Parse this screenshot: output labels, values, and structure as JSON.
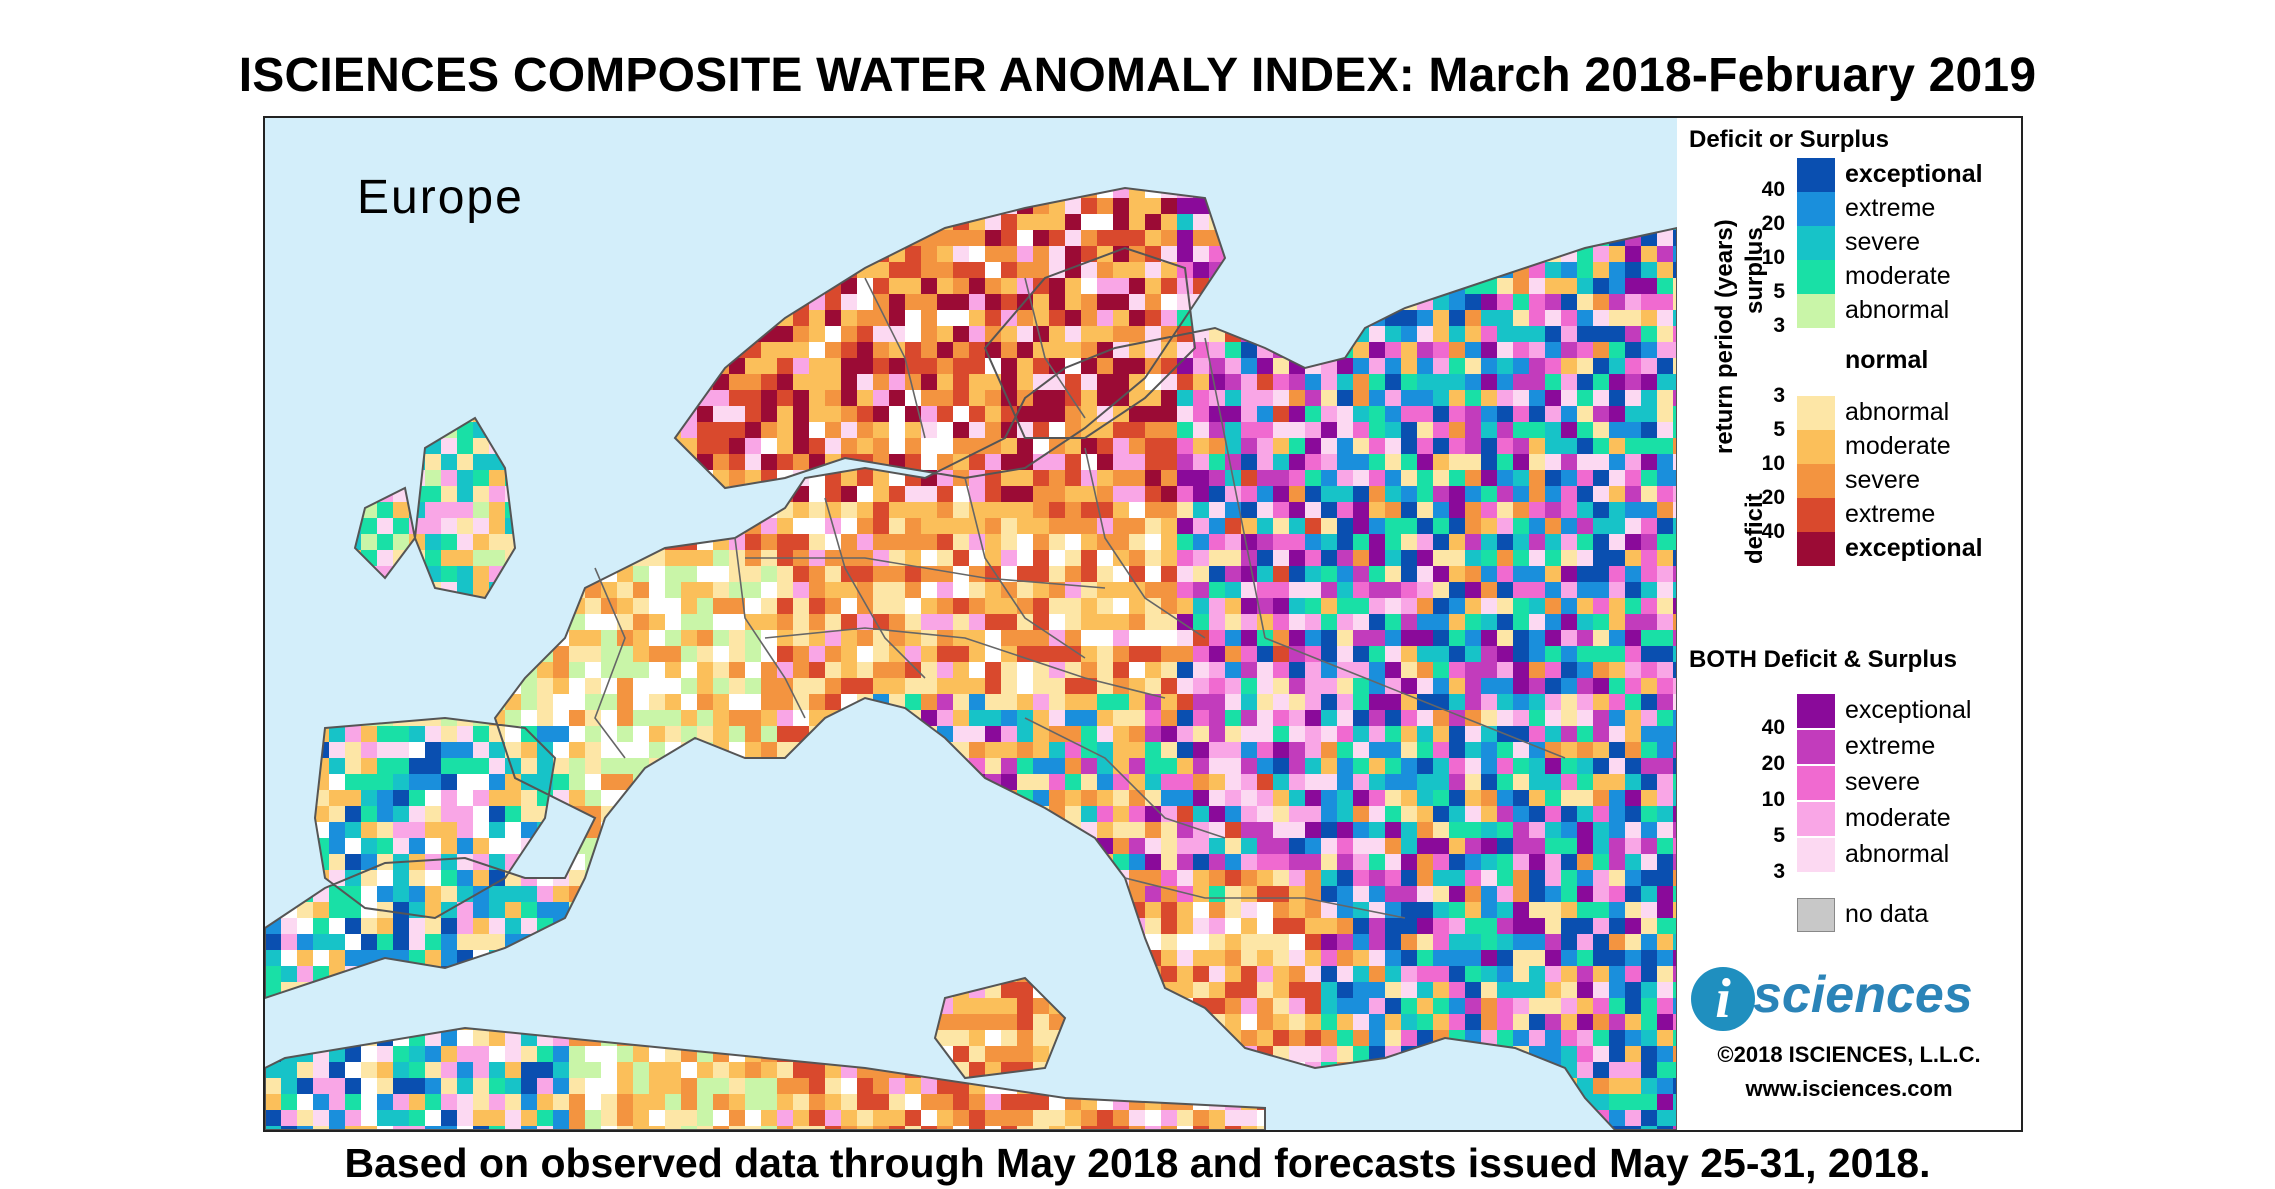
{
  "title": "ISCIENCES COMPOSITE WATER ANOMALY INDEX: March 2018-February 2019",
  "footer": "Based on observed data through May 2018 and forecasts issued May 25-31, 2018.",
  "map": {
    "region_label": "Europe"
  },
  "legend": {
    "section1_title": "Deficit or Surplus",
    "axis_return_period": "return period (years)",
    "axis_surplus": "surplus",
    "axis_deficit": "deficit",
    "surplus_numbers": [
      "40",
      "20",
      "10",
      "5",
      "3"
    ],
    "deficit_numbers": [
      "3",
      "5",
      "10",
      "20",
      "40"
    ],
    "surplus_classes": [
      {
        "label": "exceptional",
        "color": "#0a4fb0",
        "bold": true
      },
      {
        "label": "extreme",
        "color": "#1a8fdc",
        "bold": false
      },
      {
        "label": "severe",
        "color": "#17c3c8",
        "bold": false
      },
      {
        "label": "moderate",
        "color": "#19e0a6",
        "bold": false
      },
      {
        "label": "abnormal",
        "color": "#c9f5a8",
        "bold": false
      }
    ],
    "normal": {
      "label": "normal",
      "color": "#ffffff"
    },
    "deficit_classes": [
      {
        "label": "abnormal",
        "color": "#fde6a6",
        "bold": false
      },
      {
        "label": "moderate",
        "color": "#fbbf5a",
        "bold": false
      },
      {
        "label": "severe",
        "color": "#f39440",
        "bold": false
      },
      {
        "label": "extreme",
        "color": "#d9492d",
        "bold": false
      },
      {
        "label": "exceptional",
        "color": "#9b0b35",
        "bold": true
      }
    ],
    "section2_title": "BOTH Deficit & Surplus",
    "both_numbers": [
      "40",
      "20",
      "10",
      "5",
      "3"
    ],
    "both_classes": [
      {
        "label": "exceptional",
        "color": "#8a0a9a"
      },
      {
        "label": "extreme",
        "color": "#c23cbc"
      },
      {
        "label": "severe",
        "color": "#f06ad0"
      },
      {
        "label": "moderate",
        "color": "#f9a6e6"
      },
      {
        "label": "abnormal",
        "color": "#fcd9f2"
      }
    ],
    "no_data": {
      "label": "no data",
      "color": "#c8c8c8"
    }
  },
  "logo": {
    "mark": "i",
    "text": "sciences"
  },
  "copyright": "©2018 ISCIENCES, L.L.C.",
  "url": "www.isciences.com"
}
